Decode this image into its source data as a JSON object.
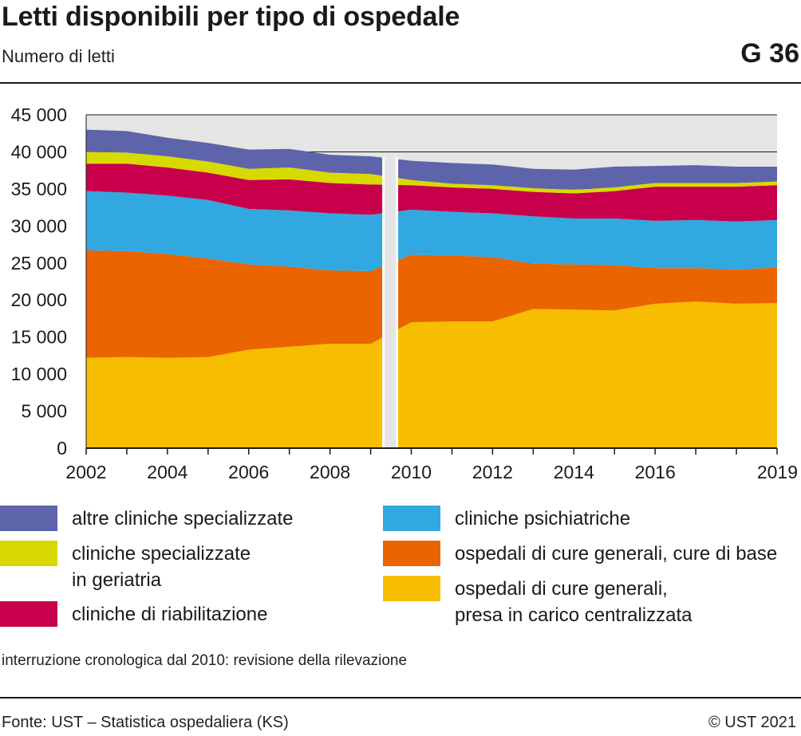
{
  "header": {
    "title": "Letti disponibili per tipo di ospedale",
    "subtitle": "Numero di letti",
    "code": "G 36"
  },
  "note": "interruzione cronologica dal 2010: revisione della rilevazione",
  "footer": {
    "source": "Fonte: UST – Statistica ospedaliera (KS)",
    "copyright": "© UST 2021"
  },
  "chart_data": {
    "type": "area",
    "stacked": true,
    "x": [
      2002,
      2003,
      2004,
      2005,
      2006,
      2007,
      2008,
      2009,
      2010,
      2011,
      2012,
      2013,
      2014,
      2015,
      2016,
      2017,
      2018,
      2019
    ],
    "x_tick_labels": [
      {
        "x": 2002,
        "label": "2002"
      },
      {
        "x": 2004,
        "label": "2004"
      },
      {
        "x": 2006,
        "label": "2006"
      },
      {
        "x": 2008,
        "label": "2008"
      },
      {
        "x": 2010,
        "label": "2010"
      },
      {
        "x": 2012,
        "label": "2012"
      },
      {
        "x": 2014,
        "label": "2014"
      },
      {
        "x": 2016,
        "label": "2016"
      },
      {
        "x": 2019,
        "label": "2019"
      }
    ],
    "ylim": [
      0,
      45000
    ],
    "y_ticks": [
      0,
      5000,
      10000,
      15000,
      20000,
      25000,
      30000,
      35000,
      40000,
      45000
    ],
    "y_tick_labels": [
      "0",
      "5 000",
      "10 000",
      "15 000",
      "20 000",
      "25 000",
      "30 000",
      "35 000",
      "40 000",
      "45 000"
    ],
    "break": {
      "after": 2009,
      "before": 2010
    },
    "grid": true,
    "legend_position": "bottom",
    "series": [
      {
        "name": "ospedali di cure generali,\npresa in carico centralizzata",
        "color": "#f7bd00",
        "values": [
          12200,
          12300,
          12200,
          12300,
          13300,
          13700,
          14100,
          14100,
          17000,
          17100,
          17100,
          18800,
          18700,
          18600,
          19500,
          19800,
          19500,
          19600
        ]
      },
      {
        "name": "ospedali di cure generali, cure di base",
        "color": "#ea6400",
        "values": [
          14500,
          14300,
          14000,
          13300,
          11500,
          10800,
          9900,
          9800,
          9100,
          8900,
          8700,
          6100,
          6100,
          6100,
          4800,
          4500,
          4600,
          4800
        ]
      },
      {
        "name": "cliniche psichiatriche",
        "color": "#32a8e0",
        "values": [
          8000,
          7900,
          7900,
          7900,
          7500,
          7600,
          7700,
          7600,
          6100,
          5900,
          5900,
          6400,
          6200,
          6300,
          6400,
          6500,
          6500,
          6400
        ]
      },
      {
        "name": "cliniche di riabilitazione",
        "color": "#c8004b",
        "values": [
          3700,
          3900,
          3800,
          3700,
          3900,
          4200,
          4100,
          4100,
          3300,
          3300,
          3300,
          3300,
          3400,
          3700,
          4600,
          4500,
          4700,
          4700
        ]
      },
      {
        "name": "cliniche specializzate\nin geriatria",
        "color": "#d8d900",
        "values": [
          1600,
          1500,
          1500,
          1500,
          1500,
          1600,
          1400,
          1400,
          700,
          500,
          500,
          500,
          500,
          500,
          500,
          500,
          500,
          500
        ]
      },
      {
        "name": "altre cliniche specializzate",
        "color": "#5e64aa",
        "values": [
          3000,
          2900,
          2500,
          2500,
          2600,
          2500,
          2400,
          2400,
          2600,
          2800,
          2800,
          2600,
          2700,
          2800,
          2300,
          2400,
          2200,
          2000
        ]
      }
    ]
  },
  "legend": {
    "items": [
      {
        "label": "altre cliniche specializzate",
        "color": "#5e64aa"
      },
      {
        "label": "cliniche specializzate\nin geriatria",
        "color": "#d8d900"
      },
      {
        "label": "cliniche di riabilitazione",
        "color": "#c8004b"
      },
      {
        "label": "cliniche psichiatriche",
        "color": "#32a8e0"
      },
      {
        "label": "ospedali di cure generali, cure di base",
        "color": "#ea6400"
      },
      {
        "label": "ospedali di cure generali,\npresa in carico centralizzata",
        "color": "#f7bd00"
      }
    ]
  }
}
